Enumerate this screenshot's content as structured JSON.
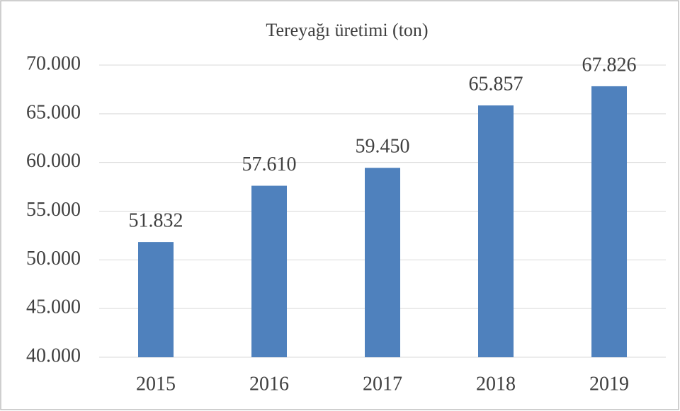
{
  "chart_data": {
    "type": "bar",
    "title": "Tereyağı üretimi (ton)",
    "categories": [
      "2015",
      "2016",
      "2017",
      "2018",
      "2019"
    ],
    "values": [
      51832,
      57610,
      59450,
      65857,
      67826
    ],
    "value_labels": [
      "51.832",
      "57.610",
      "59.450",
      "65.857",
      "67.826"
    ],
    "color": "#4f81bd",
    "ylim": [
      40000,
      70000
    ],
    "yticks": [
      {
        "value": 40000,
        "label": "40.000"
      },
      {
        "value": 45000,
        "label": "45.000"
      },
      {
        "value": 50000,
        "label": "50.000"
      },
      {
        "value": 55000,
        "label": "55.000"
      },
      {
        "value": 60000,
        "label": "60.000"
      },
      {
        "value": 65000,
        "label": "65.000"
      },
      {
        "value": 70000,
        "label": "70.000"
      }
    ],
    "grid": true
  }
}
